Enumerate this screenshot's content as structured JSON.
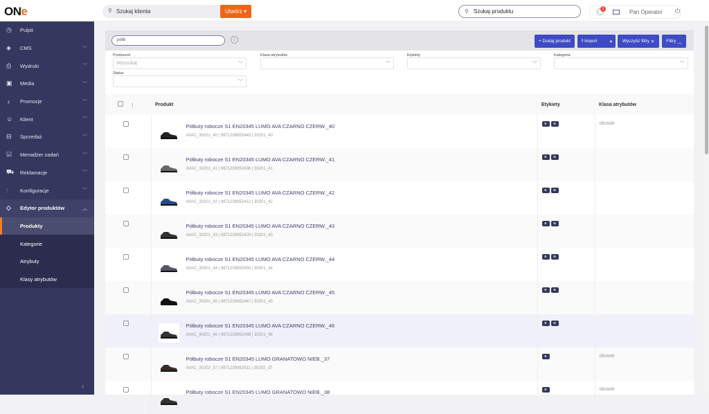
{
  "header": {
    "logo": "ONe",
    "client_search_placeholder": "Szukaj klienta",
    "create_button": "Utwórz",
    "product_search_placeholder": "Szukaj produktu",
    "notifications_count": "1",
    "user_name": "Pan Operator"
  },
  "sidebar": {
    "items": [
      {
        "label": "Pulpit",
        "icon": "dashboard-icon",
        "chevron": false
      },
      {
        "label": "CMS",
        "icon": "layers-icon",
        "chevron": true
      },
      {
        "label": "Wydruki",
        "icon": "printer-icon",
        "chevron": true
      },
      {
        "label": "Media",
        "icon": "image-icon",
        "chevron": true
      },
      {
        "label": "Promocje",
        "icon": "award-icon",
        "chevron": true
      },
      {
        "label": "Klient",
        "icon": "users-icon",
        "chevron": true
      },
      {
        "label": "Sprzedaż",
        "icon": "basket-icon",
        "chevron": true
      },
      {
        "label": "Menadżer zadań",
        "icon": "task-icon",
        "chevron": true
      },
      {
        "label": "Reklamacje",
        "icon": "cart-return-icon",
        "chevron": true
      },
      {
        "label": "Konfiguracje",
        "icon": "sliders-icon",
        "chevron": true
      },
      {
        "label": "Edytor produktów",
        "icon": "tag-icon",
        "chevron": true
      }
    ],
    "subitems": [
      "Produkty",
      "Kategorie",
      "Atrybuty",
      "Klasy atrybutów"
    ],
    "active_subitem": "Produkty"
  },
  "toolbar": {
    "search_value": "półb",
    "add_product": "+ Dodaj produkt",
    "import": "Import",
    "clear_filters": "Wyczyść filtry",
    "filters": "Filtry"
  },
  "filters": {
    "producent_label": "Producent",
    "producent_placeholder": "Wyszukaj",
    "klasa_label": "Klasa atrybutów",
    "etykiety_label": "Etykiety",
    "kategoria_label": "Kategoria",
    "status_label": "Status"
  },
  "table": {
    "columns": [
      "Produkt",
      "Etykiety",
      "Klasa atrybutów"
    ],
    "rows": [
      {
        "name": "Półbuty robocze S1 EN20345 LUMO AVA CZARNO CZERW._40",
        "meta": "AVAC_30201_40  |  9871239952443  |  30201_40",
        "tags": [
          "E",
          "N"
        ],
        "klasa": "obuwie",
        "shoe_color": "#222"
      },
      {
        "name": "Półbuty robocze S1 EN20345 LUMO AVA CZARNO CZERW._41",
        "meta": "AVAC_30201_41  |  9871239952436  |  30201_41",
        "tags": [
          "E",
          "N"
        ],
        "klasa": "",
        "shoe_color": "#666"
      },
      {
        "name": "Półbuty robocze S1 EN20345 LUMO AVA CZARNO CZERW._42",
        "meta": "AVAC_30201_42  |  9871239952412  |  30201_42",
        "tags": [
          "E",
          "N"
        ],
        "klasa": "",
        "shoe_color": "#234c8a"
      },
      {
        "name": "Półbuty robocze S1 EN20345 LUMO AVA CZARNO CZERW._43",
        "meta": "AVAC_30201_43  |  9871239952429  |  30201_43",
        "tags": [
          "E",
          "N"
        ],
        "klasa": "",
        "shoe_color": "#333"
      },
      {
        "name": "Półbuty robocze S1 EN20345 LUMO AVA CZARNO CZERW._44",
        "meta": "AVAC_30201_44  |  9871239952450  |  30201_44",
        "tags": [
          "E",
          "N"
        ],
        "klasa": "",
        "shoe_color": "#556"
      },
      {
        "name": "Półbuty robocze S1 EN20345 LUMO AVA CZARNO CZERW._45",
        "meta": "AVAC_30201_45  |  9871239952467  |  30201_45",
        "tags": [
          "E",
          "N"
        ],
        "klasa": "",
        "shoe_color": "#111"
      },
      {
        "name": "Półbuty robocze S1 EN20345 LUMO AVA CZARNO CZERW._46",
        "meta": "AVAC_30201_46  |  9871239952498  |  30201_46",
        "tags": [
          "E",
          "N"
        ],
        "klasa": "",
        "shoe_color": "#333",
        "highlighted": true
      },
      {
        "name": "Półbuty robocze S1 EN20345 LUMO GRANATOWO NIEB._37",
        "meta": "AVAC_30202_37  |  9871239952511  |  30202_37",
        "tags": [
          "E"
        ],
        "klasa": "obuwie",
        "shoe_color": "#3a2a2a"
      },
      {
        "name": "Półbuty robocze S1 EN20345 LUMO GRANATOWO NIEB._38",
        "meta": "",
        "tags": [
          "E"
        ],
        "klasa": "obuwie",
        "shoe_color": "#333"
      }
    ]
  }
}
